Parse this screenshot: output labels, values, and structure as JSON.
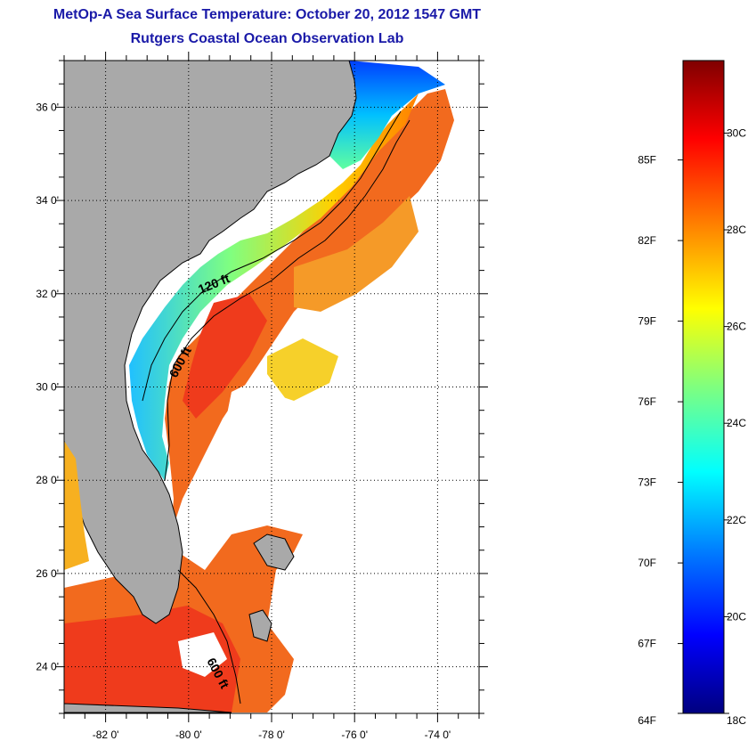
{
  "title": {
    "line1": "MetOp-A Sea Surface Temperature:  October 20, 2012 1547 GMT",
    "line2": "Rutgers Coastal Ocean Observation Lab"
  },
  "map": {
    "lon_range": [
      -83,
      -73
    ],
    "lat_range": [
      23,
      37
    ],
    "lon_ticks": [
      {
        "value": -82,
        "label": "-82 0'"
      },
      {
        "value": -80,
        "label": "-80 0'"
      },
      {
        "value": -78,
        "label": "-78 0'"
      },
      {
        "value": -76,
        "label": "-76 0'"
      },
      {
        "value": -74,
        "label": "-74 0'"
      }
    ],
    "lat_ticks": [
      {
        "value": 24,
        "label": "24 0'"
      },
      {
        "value": 26,
        "label": "26 0'"
      },
      {
        "value": 28,
        "label": "28 0'"
      },
      {
        "value": 30,
        "label": "30 0'"
      },
      {
        "value": 32,
        "label": "32 0'"
      },
      {
        "value": 34,
        "label": "34 0'"
      },
      {
        "value": 36,
        "label": "36 0'"
      }
    ],
    "gridlines": "dotted",
    "contour_labels": [
      "120 ft",
      "600 ft",
      "600 ft"
    ],
    "colors": {
      "land": "#a9a9a9",
      "cloud": "#ffffff",
      "coastline": "#000000"
    }
  },
  "colorbar": {
    "range_c": [
      18,
      31.5
    ],
    "fahrenheit_labels": [
      "85F",
      "82F",
      "79F",
      "76F",
      "73F",
      "70F",
      "67F",
      "64F"
    ],
    "celsius_labels": [
      "30C",
      "28C",
      "26C",
      "24C",
      "22C",
      "20C",
      "18C"
    ],
    "colors": [
      "#00007f",
      "#0000ff",
      "#007fff",
      "#00ffff",
      "#7fff7f",
      "#ffff00",
      "#ff7f00",
      "#ff0000",
      "#7f0000"
    ]
  }
}
